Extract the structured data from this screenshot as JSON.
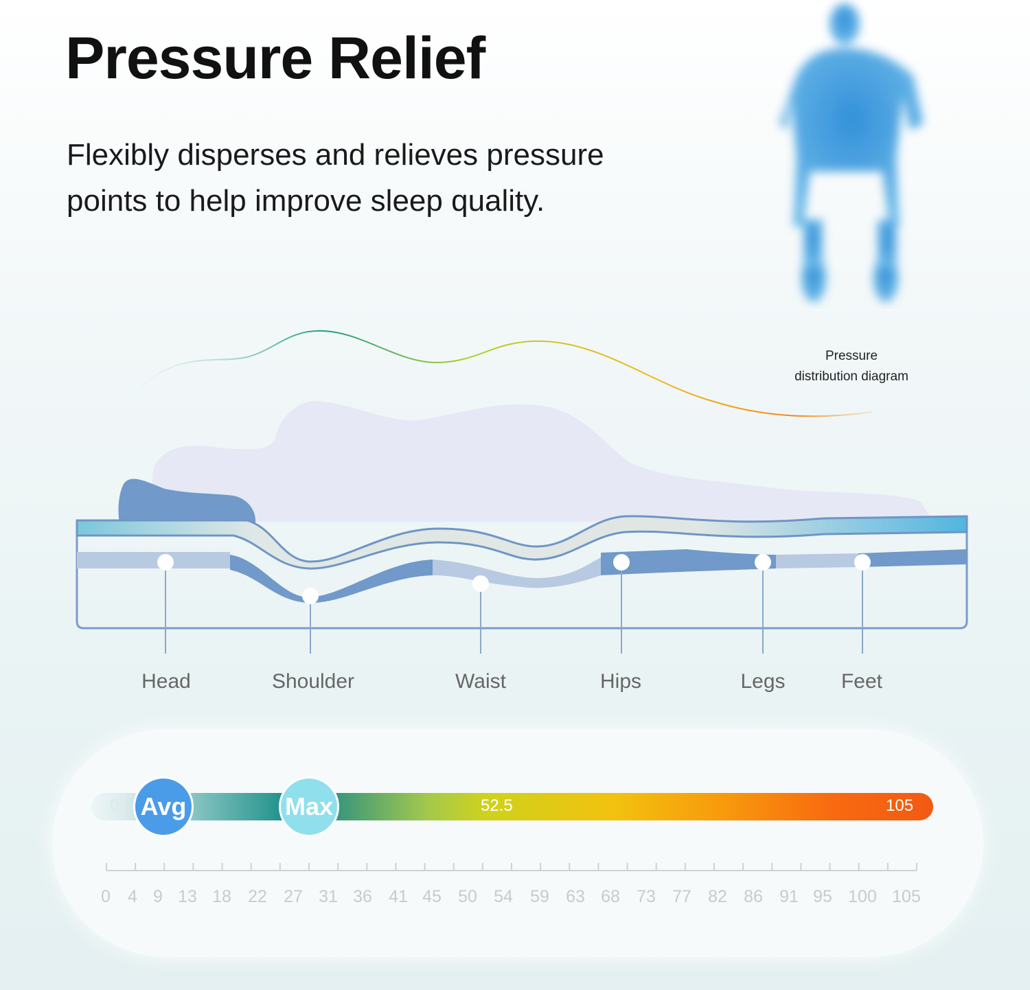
{
  "header": {
    "title": "Pressure Relief",
    "subtitle": "Flexibly disperses and relieves pressure points to help improve sleep quality."
  },
  "diagram": {
    "label_line1": "Pressure",
    "label_line2": "distribution diagram",
    "body_parts": [
      "Head",
      "Shoulder",
      "Waist",
      "Hips",
      "Legs",
      "Feet"
    ]
  },
  "scale": {
    "min_label": "0",
    "mid_label": "52.5",
    "max_label": "105",
    "avg_badge": "Avg",
    "max_badge": "Max",
    "avg_value": 9,
    "max_value": 31,
    "tick_labels": [
      "0",
      "4",
      "9",
      "13",
      "18",
      "22",
      "27",
      "31",
      "36",
      "41",
      "45",
      "50",
      "54",
      "59",
      "63",
      "68",
      "73",
      "77",
      "82",
      "86",
      "91",
      "95",
      "100",
      "105"
    ]
  },
  "colors": {
    "avg": "#4a9ce8",
    "max": "#8fe0ec",
    "mattress": "#6f95c4"
  }
}
